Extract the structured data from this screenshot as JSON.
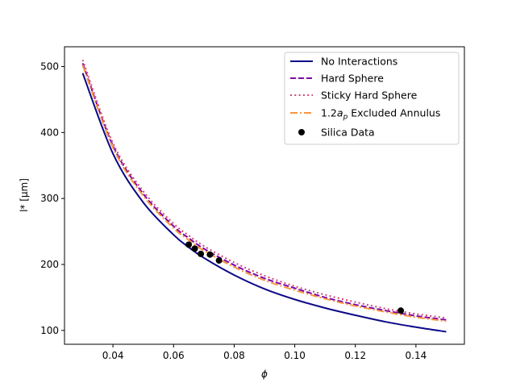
{
  "chart_data": {
    "type": "line",
    "title": "",
    "xlabel": "ϕ",
    "ylabel": "l* [μm]",
    "xlim": [
      0.024,
      0.156
    ],
    "ylim": [
      79,
      530
    ],
    "xticks": [
      0.04,
      0.06,
      0.08,
      0.1,
      0.12,
      0.14
    ],
    "xtick_labels": [
      "0.04",
      "0.06",
      "0.08",
      "0.10",
      "0.12",
      "0.14"
    ],
    "yticks": [
      100,
      200,
      300,
      400,
      500
    ],
    "ytick_labels": [
      "100",
      "200",
      "300",
      "400",
      "500"
    ],
    "grid": false,
    "legend_position": "top-right",
    "series": [
      {
        "name": "No Interactions",
        "legend_label": "No Interactions",
        "style": "solid",
        "color": "#0d0887",
        "x": [
          0.03,
          0.04,
          0.05,
          0.06,
          0.065,
          0.07,
          0.08,
          0.09,
          0.1,
          0.11,
          0.12,
          0.13,
          0.14,
          0.15
        ],
        "y": [
          490,
          368,
          294,
          245,
          226,
          210,
          184,
          163,
          147,
          134,
          123,
          113,
          105,
          98
        ]
      },
      {
        "name": "Hard Sphere",
        "legend_label": "Hard Sphere",
        "style": "dashed",
        "color": "#7e03a8",
        "x": [
          0.03,
          0.04,
          0.05,
          0.06,
          0.065,
          0.07,
          0.08,
          0.09,
          0.1,
          0.11,
          0.12,
          0.13,
          0.14,
          0.15
        ],
        "y": [
          505,
          380,
          307,
          258,
          240,
          224,
          199,
          179,
          164,
          150,
          139,
          130,
          122,
          116
        ]
      },
      {
        "name": "Sticky Hard Sphere",
        "legend_label": "Sticky Hard Sphere",
        "style": "dotted",
        "color": "#cc4778",
        "x": [
          0.03,
          0.04,
          0.05,
          0.06,
          0.065,
          0.07,
          0.08,
          0.09,
          0.1,
          0.11,
          0.12,
          0.13,
          0.14,
          0.15
        ],
        "y": [
          510,
          384,
          311,
          262,
          244,
          228,
          203,
          183,
          167,
          154,
          143,
          133,
          125,
          119
        ]
      },
      {
        "name": "1.2a_p Excluded Annulus",
        "legend_label": "1.2a Excluded Annulus",
        "legend_prefix": "1.2",
        "legend_italic": "a",
        "legend_subscript": "p",
        "legend_suffix": " Excluded Annulus",
        "style": "dashdot",
        "color": "#f89540",
        "x": [
          0.03,
          0.04,
          0.05,
          0.06,
          0.065,
          0.07,
          0.08,
          0.09,
          0.1,
          0.11,
          0.12,
          0.13,
          0.14,
          0.15
        ],
        "y": [
          502,
          377,
          304,
          255,
          237,
          221,
          196,
          176,
          161,
          148,
          137,
          128,
          120,
          114
        ]
      }
    ],
    "scatter": {
      "name": "Silica Data",
      "legend_label": "Silica Data",
      "color": "#000000",
      "x": [
        0.065,
        0.067,
        0.069,
        0.072,
        0.075,
        0.135
      ],
      "y": [
        230,
        224,
        216,
        215,
        206,
        130
      ]
    }
  }
}
